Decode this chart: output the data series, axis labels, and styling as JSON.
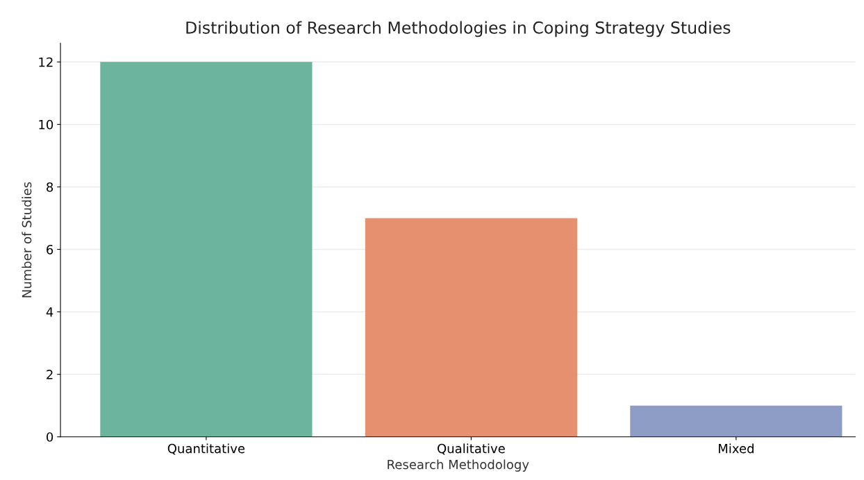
{
  "chart_data": {
    "type": "bar",
    "title": "Distribution of Research Methodologies in Coping Strategy Studies",
    "xlabel": "Research Methodology",
    "ylabel": "Number of Studies",
    "categories": [
      "Quantitative",
      "Qualitative",
      "Mixed"
    ],
    "values": [
      12,
      7,
      1
    ],
    "colors": [
      "#6db49e",
      "#e6906f",
      "#8d9dc5"
    ],
    "ylim": [
      0,
      12.6
    ],
    "yticks": [
      0,
      2,
      4,
      6,
      8,
      10,
      12
    ],
    "grid": "y",
    "legend": false
  }
}
